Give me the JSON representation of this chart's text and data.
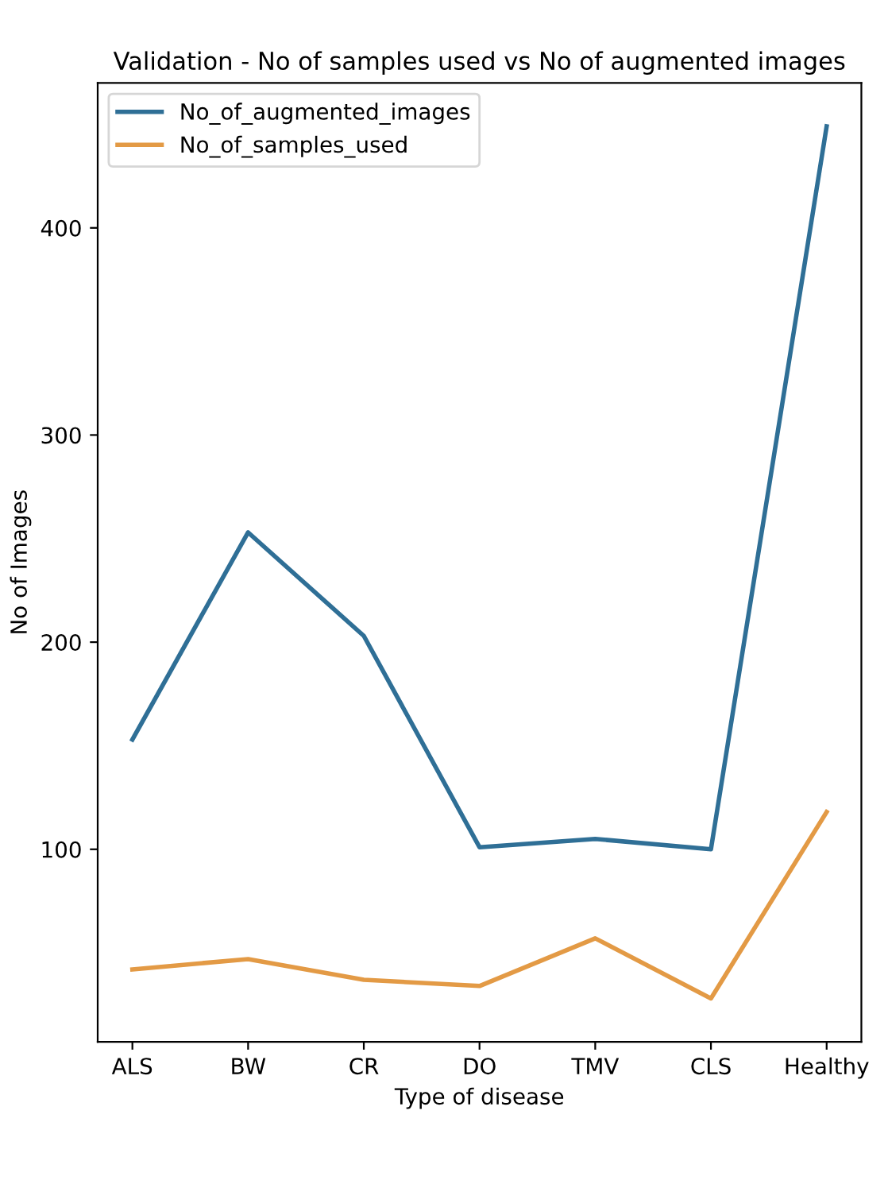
{
  "chart_data": {
    "type": "line",
    "title": "Validation - No of samples used vs No of augmented images",
    "xlabel": "Type of disease",
    "ylabel": "No of Images",
    "categories": [
      "ALS",
      "BW",
      "CR",
      "DO",
      "TMV",
      "CLS",
      "Healthy"
    ],
    "series": [
      {
        "name": "No_of_augmented_images",
        "color": "#2f6f96",
        "values": [
          153,
          253,
          203,
          101,
          105,
          100,
          449
        ]
      },
      {
        "name": "No_of_samples_used",
        "color": "#e39a45",
        "values": [
          42,
          47,
          37,
          34,
          57,
          28,
          118
        ]
      }
    ],
    "ylim": [
      7,
      470
    ],
    "yticks": [
      100,
      200,
      300,
      400
    ],
    "legend": "top left",
    "grid": false
  }
}
